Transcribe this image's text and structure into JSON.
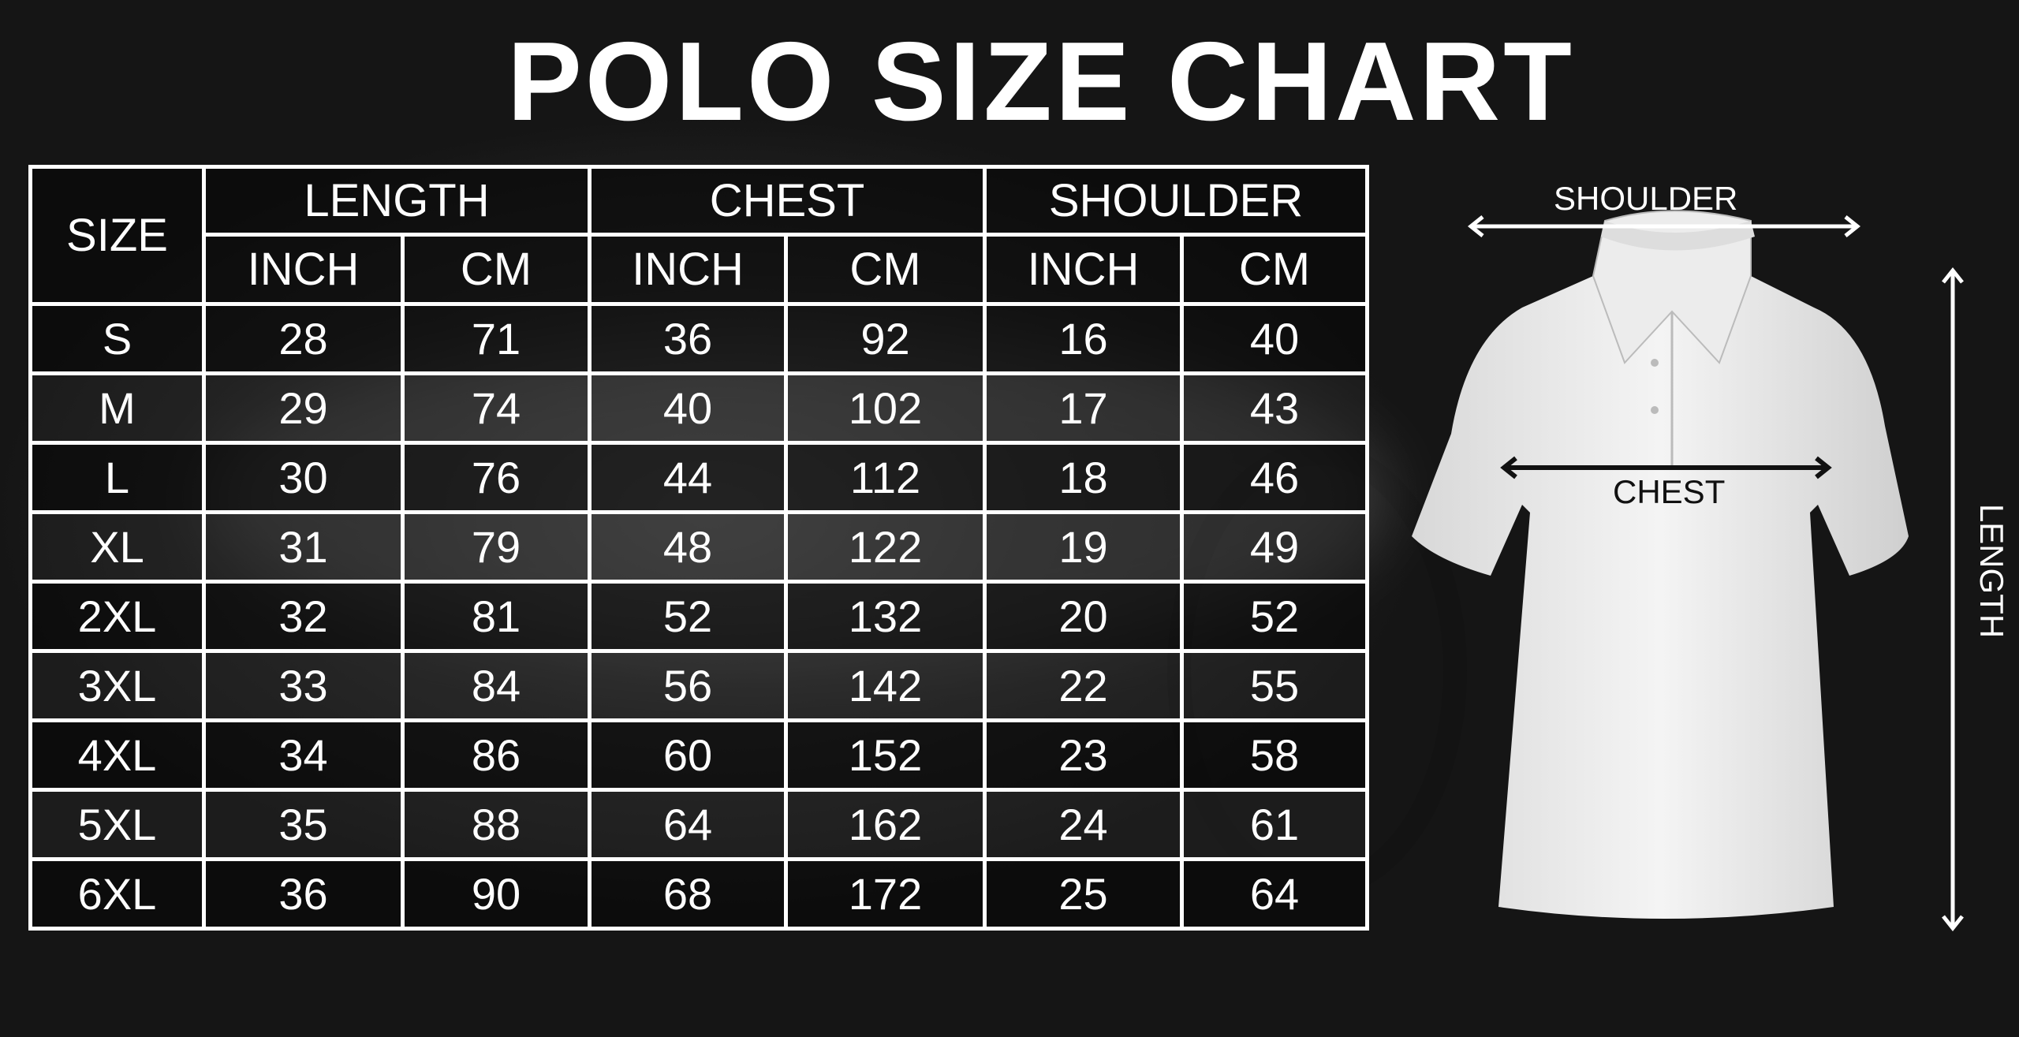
{
  "title": "POLO SIZE CHART",
  "table": {
    "size_header": "SIZE",
    "groups": [
      "LENGTH",
      "CHEST",
      "SHOULDER"
    ],
    "units": [
      "INCH",
      "CM",
      "INCH",
      "CM",
      "INCH",
      "CM"
    ],
    "rows": [
      [
        "S",
        "28",
        "71",
        "36",
        "92",
        "16",
        "40"
      ],
      [
        "M",
        "29",
        "74",
        "40",
        "102",
        "17",
        "43"
      ],
      [
        "L",
        "30",
        "76",
        "44",
        "112",
        "18",
        "46"
      ],
      [
        "XL",
        "31",
        "79",
        "48",
        "122",
        "19",
        "49"
      ],
      [
        "2XL",
        "32",
        "81",
        "52",
        "132",
        "20",
        "52"
      ],
      [
        "3XL",
        "33",
        "84",
        "56",
        "142",
        "22",
        "55"
      ],
      [
        "4XL",
        "34",
        "86",
        "60",
        "152",
        "23",
        "58"
      ],
      [
        "5XL",
        "35",
        "88",
        "64",
        "162",
        "24",
        "61"
      ],
      [
        "6XL",
        "36",
        "90",
        "68",
        "172",
        "25",
        "64"
      ]
    ]
  },
  "diagram": {
    "shoulder": "SHOULDER",
    "chest": "CHEST",
    "length": "LENGTH"
  }
}
